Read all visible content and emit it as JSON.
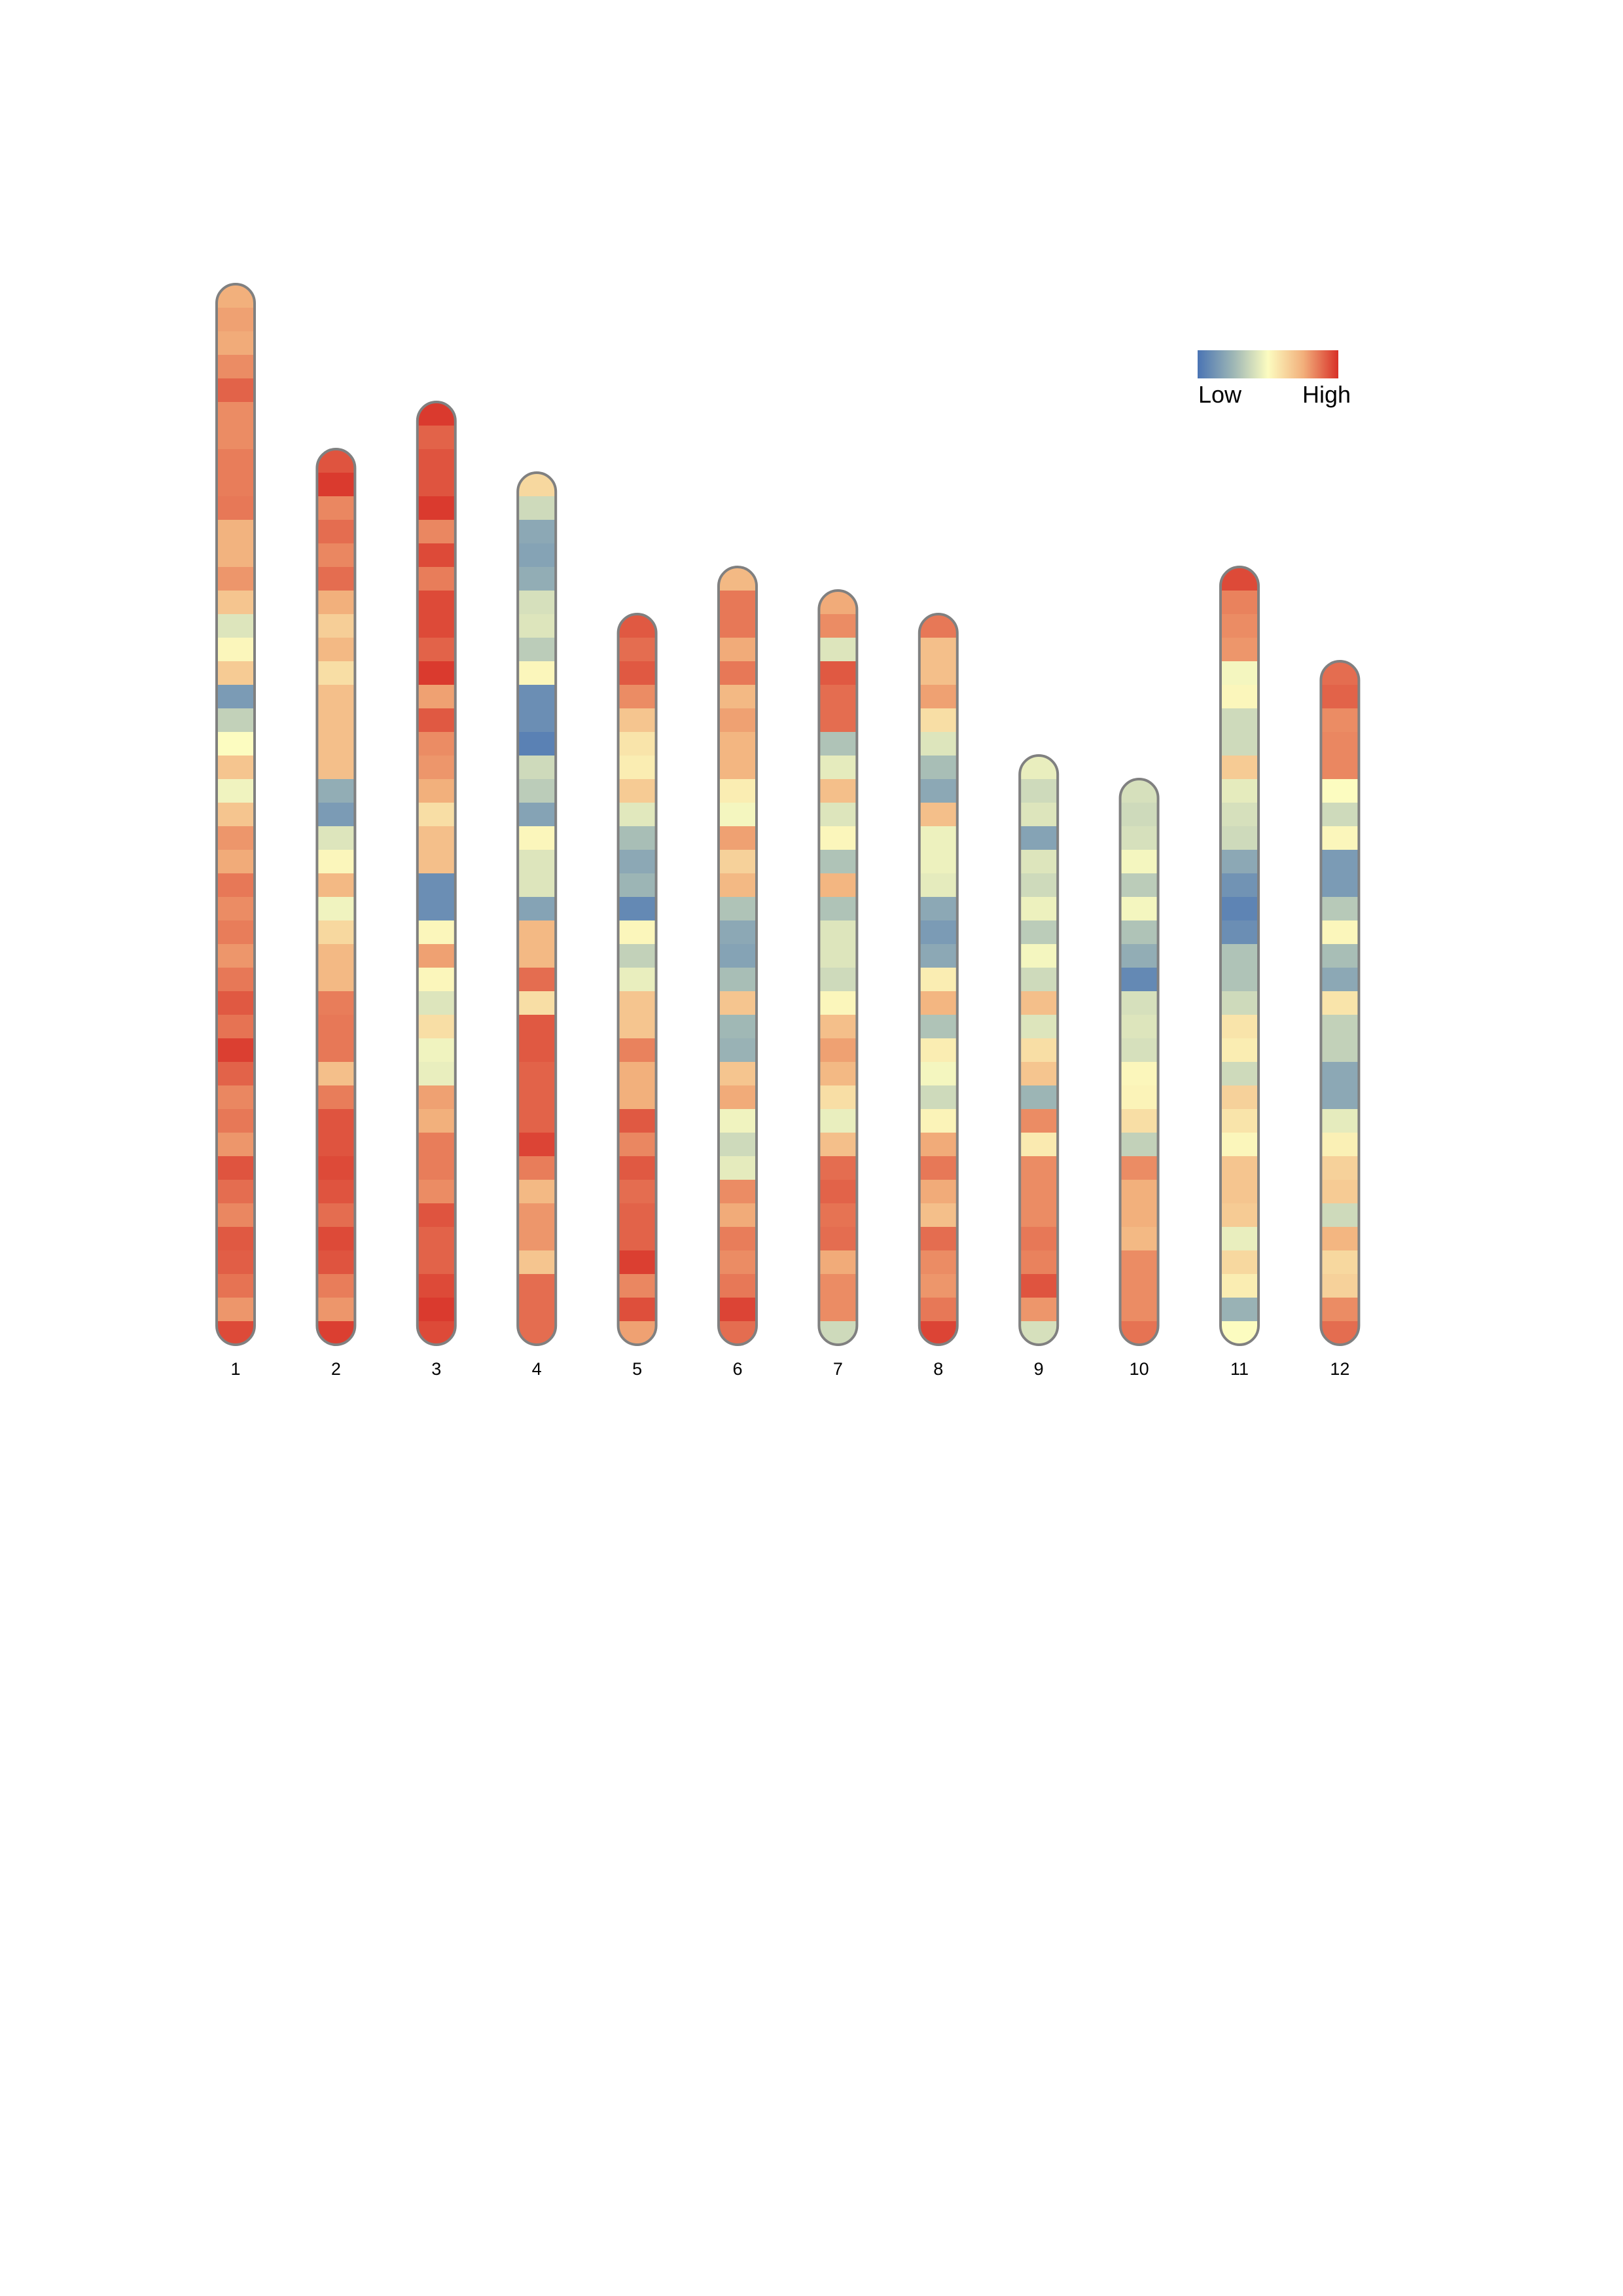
{
  "chart_data": {
    "type": "heatmap",
    "title": "",
    "legend": {
      "low_label": "Low",
      "high_label": "High",
      "placement": "top-right",
      "colors": [
        "#4a74b4",
        "#9cb5b5",
        "#fcfcc0",
        "#f2b07c",
        "#d83027"
      ]
    },
    "value_scale": "relative density, 0 = Low, 1 = High",
    "outline_color": "#808080",
    "chromosomes": [
      {
        "label": "1",
        "values": [
          0.75,
          0.78,
          0.76,
          0.82,
          0.9,
          0.82,
          0.82,
          0.85,
          0.85,
          0.86,
          0.74,
          0.74,
          0.8,
          0.68,
          0.42,
          0.52,
          0.66,
          0.15,
          0.35,
          0.5,
          0.68,
          0.47,
          0.68,
          0.8,
          0.76,
          0.86,
          0.82,
          0.85,
          0.8,
          0.86,
          0.92,
          0.87,
          0.97,
          0.9,
          0.83,
          0.86,
          0.8,
          0.93,
          0.88,
          0.83,
          0.92,
          0.91,
          0.87,
          0.8,
          0.95
        ]
      },
      {
        "label": "2",
        "values": [
          0.93,
          0.98,
          0.83,
          0.88,
          0.83,
          0.88,
          0.75,
          0.65,
          0.72,
          0.6,
          0.7,
          0.7,
          0.7,
          0.7,
          0.22,
          0.15,
          0.42,
          0.52,
          0.72,
          0.47,
          0.62,
          0.72,
          0.72,
          0.85,
          0.86,
          0.86,
          0.7,
          0.85,
          0.93,
          0.93,
          0.95,
          0.93,
          0.88,
          0.95,
          0.93,
          0.85,
          0.8,
          0.97
        ]
      },
      {
        "label": "3",
        "values": [
          0.98,
          0.9,
          0.93,
          0.93,
          0.98,
          0.83,
          0.95,
          0.85,
          0.95,
          0.95,
          0.9,
          0.98,
          0.78,
          0.92,
          0.82,
          0.8,
          0.75,
          0.6,
          0.7,
          0.7,
          0.1,
          0.1,
          0.52,
          0.78,
          0.52,
          0.42,
          0.6,
          0.47,
          0.45,
          0.78,
          0.75,
          0.85,
          0.85,
          0.82,
          0.93,
          0.9,
          0.9,
          0.95,
          0.98,
          0.95
        ]
      },
      {
        "label": "4",
        "values": [
          0.62,
          0.38,
          0.2,
          0.18,
          0.22,
          0.4,
          0.42,
          0.33,
          0.52,
          0.1,
          0.1,
          0.05,
          0.38,
          0.33,
          0.18,
          0.52,
          0.42,
          0.42,
          0.18,
          0.72,
          0.72,
          0.88,
          0.6,
          0.92,
          0.92,
          0.9,
          0.9,
          0.9,
          0.96,
          0.85,
          0.72,
          0.8,
          0.8,
          0.68,
          0.88,
          0.88,
          0.88
        ]
      },
      {
        "label": "5",
        "values": [
          0.92,
          0.88,
          0.92,
          0.82,
          0.68,
          0.58,
          0.55,
          0.66,
          0.43,
          0.28,
          0.2,
          0.25,
          0.08,
          0.52,
          0.35,
          0.45,
          0.68,
          0.68,
          0.84,
          0.75,
          0.75,
          0.92,
          0.83,
          0.92,
          0.88,
          0.9,
          0.9,
          0.97,
          0.83,
          0.94,
          0.78
        ]
      },
      {
        "label": "6",
        "values": [
          0.72,
          0.86,
          0.86,
          0.76,
          0.86,
          0.72,
          0.78,
          0.73,
          0.73,
          0.55,
          0.48,
          0.78,
          0.64,
          0.72,
          0.3,
          0.2,
          0.18,
          0.28,
          0.68,
          0.26,
          0.24,
          0.68,
          0.76,
          0.47,
          0.38,
          0.44,
          0.82,
          0.76,
          0.85,
          0.82,
          0.86,
          0.96,
          0.88
        ]
      },
      {
        "label": "7",
        "values": [
          0.76,
          0.82,
          0.42,
          0.92,
          0.88,
          0.88,
          0.3,
          0.44,
          0.7,
          0.42,
          0.52,
          0.3,
          0.73,
          0.3,
          0.42,
          0.42,
          0.38,
          0.52,
          0.7,
          0.78,
          0.72,
          0.6,
          0.45,
          0.7,
          0.88,
          0.9,
          0.87,
          0.88,
          0.76,
          0.82,
          0.82,
          0.38
        ]
      },
      {
        "label": "8",
        "values": [
          0.86,
          0.7,
          0.7,
          0.78,
          0.6,
          0.42,
          0.28,
          0.2,
          0.7,
          0.46,
          0.46,
          0.44,
          0.2,
          0.15,
          0.2,
          0.55,
          0.73,
          0.3,
          0.55,
          0.48,
          0.38,
          0.53,
          0.76,
          0.86,
          0.76,
          0.7,
          0.88,
          0.82,
          0.8,
          0.86,
          0.96
        ]
      },
      {
        "label": "9",
        "values": [
          0.45,
          0.38,
          0.42,
          0.18,
          0.42,
          0.38,
          0.46,
          0.33,
          0.48,
          0.38,
          0.7,
          0.42,
          0.6,
          0.68,
          0.25,
          0.82,
          0.56,
          0.82,
          0.82,
          0.82,
          0.86,
          0.84,
          0.93,
          0.8,
          0.4
        ]
      },
      {
        "label": "10",
        "values": [
          0.4,
          0.38,
          0.4,
          0.48,
          0.33,
          0.48,
          0.3,
          0.22,
          0.08,
          0.4,
          0.42,
          0.4,
          0.52,
          0.53,
          0.6,
          0.35,
          0.82,
          0.75,
          0.75,
          0.72,
          0.82,
          0.82,
          0.82,
          0.87
        ]
      },
      {
        "label": "11",
        "values": [
          0.95,
          0.84,
          0.82,
          0.8,
          0.48,
          0.52,
          0.38,
          0.38,
          0.66,
          0.44,
          0.4,
          0.38,
          0.2,
          0.12,
          0.06,
          0.1,
          0.3,
          0.3,
          0.38,
          0.58,
          0.55,
          0.38,
          0.64,
          0.58,
          0.52,
          0.68,
          0.68,
          0.66,
          0.45,
          0.62,
          0.55,
          0.24,
          0.5
        ]
      },
      {
        "label": "12",
        "values": [
          0.88,
          0.9,
          0.82,
          0.83,
          0.83,
          0.5,
          0.38,
          0.52,
          0.15,
          0.15,
          0.32,
          0.52,
          0.28,
          0.2,
          0.58,
          0.35,
          0.35,
          0.2,
          0.2,
          0.44,
          0.54,
          0.64,
          0.66,
          0.38,
          0.73,
          0.62,
          0.64,
          0.82,
          0.88
        ]
      }
    ]
  }
}
